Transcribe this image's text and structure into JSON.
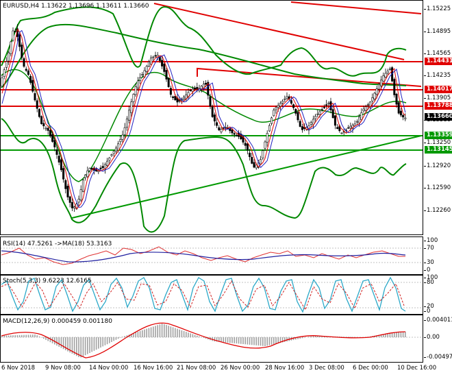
{
  "main": {
    "symbol_label": "EURUSD,H4  1.13622 1.13696 1.13611 1.13660",
    "price_ticks": [
      "1.15225",
      "1.14895",
      "1.14565",
      "1.14235",
      "1.13905",
      "1.13580",
      "1.13250",
      "1.12920",
      "1.12590",
      "1.12260"
    ],
    "price_tags": [
      {
        "text": "1.14431",
        "color": "#e00000"
      },
      {
        "text": "1.14017",
        "color": "#e00000"
      },
      {
        "text": "1.13788",
        "color": "#e00000"
      },
      {
        "text": "1.13660",
        "color": "#000000"
      },
      {
        "text": "1.13359",
        "color": "#009900"
      },
      {
        "text": "1.13145",
        "color": "#009900"
      }
    ]
  },
  "rsi": {
    "label": "RSI(14) 47.5261  ->MA(18) 53.3163",
    "ticks": [
      "100",
      "70",
      "30",
      "0"
    ]
  },
  "stoch": {
    "label": "Stoch(5,3,3) 9.6223 12.6165",
    "ticks": [
      "100",
      "80",
      "20",
      "0"
    ]
  },
  "macd": {
    "label": "MACD(12,26,9) 0.000459 0.001180",
    "ticks": [
      "0.004011",
      "0.00",
      "-0.004977"
    ]
  },
  "time_axis": [
    "6 Nov 2018",
    "9 Nov 08:00",
    "14 Nov 00:00",
    "16 Nov 16:00",
    "21 Nov 08:00",
    "26 Nov 00:00",
    "28 Nov 16:00",
    "3 Dec 08:00",
    "6 Dec 00:00",
    "10 Dec 16:00"
  ],
  "colors": {
    "resistance": "#e00000",
    "support": "#009900",
    "bull_candle": "#ffffff",
    "bear_candle": "#000000"
  }
}
